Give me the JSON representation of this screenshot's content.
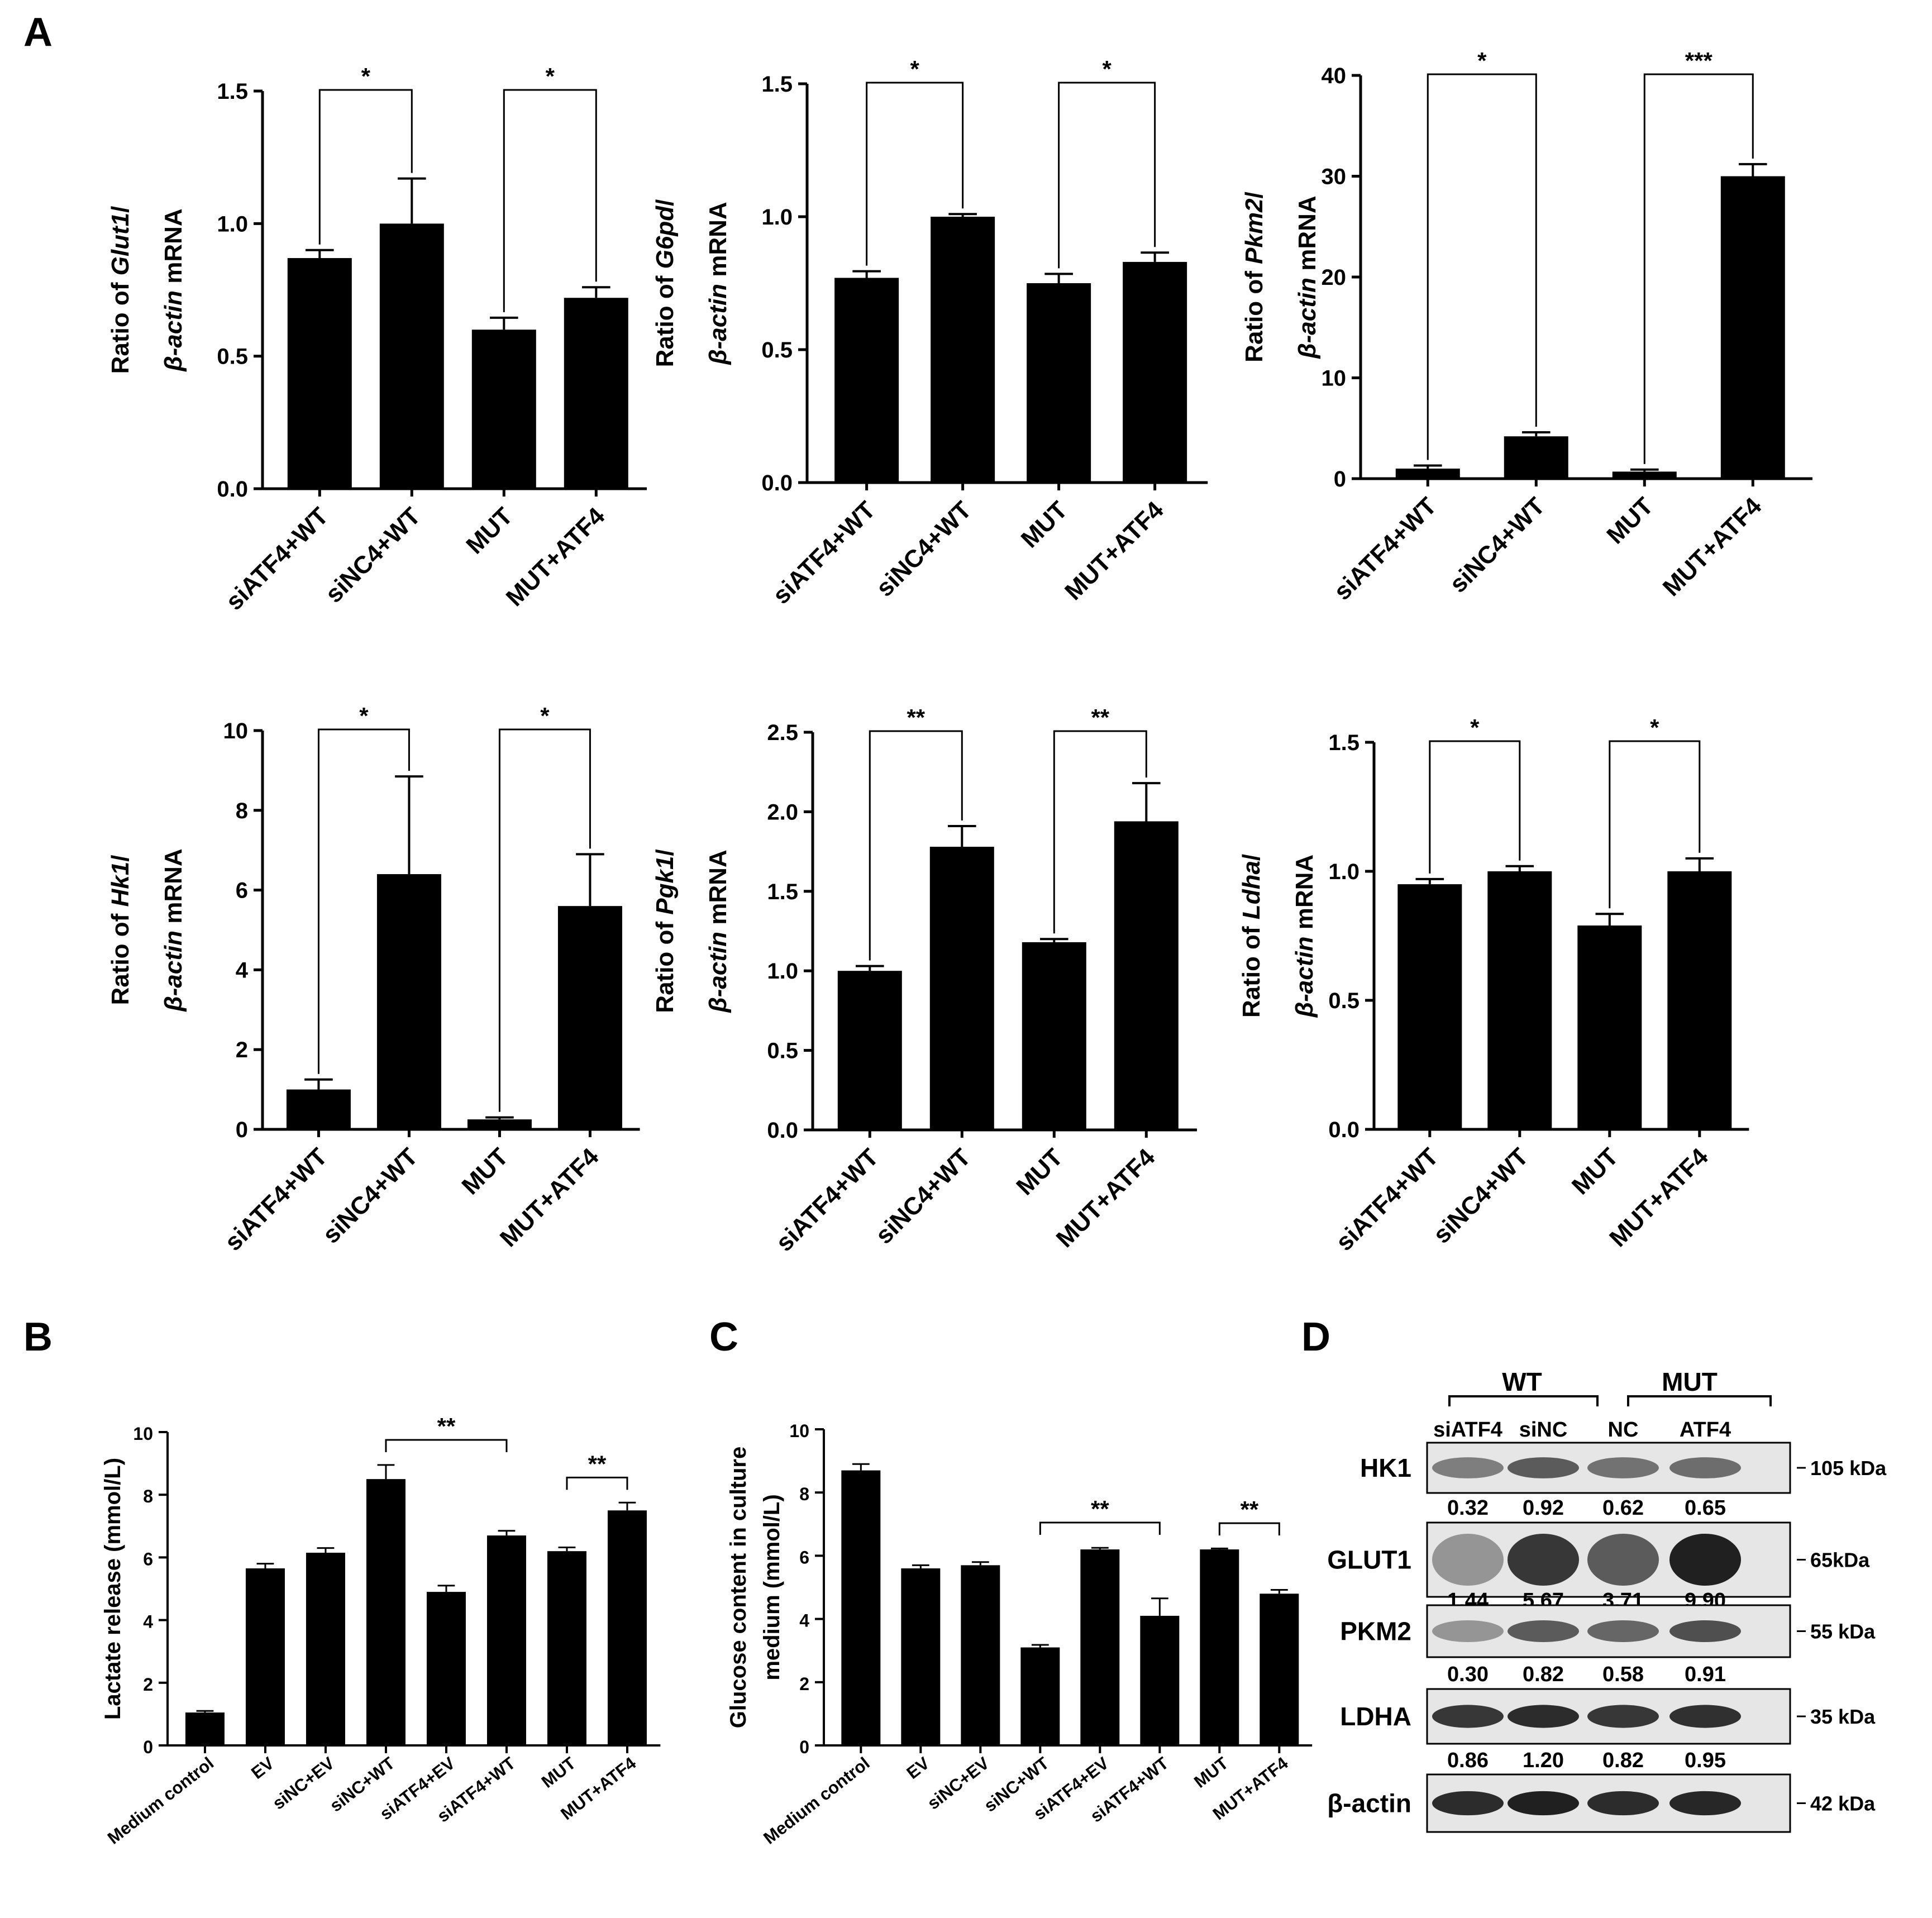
{
  "panel_labels": {
    "a": "A",
    "b": "B",
    "c": "C",
    "d": "D"
  },
  "chart_data": [
    {
      "id": "glut1",
      "type": "bar",
      "categories": [
        "siATF4+WT",
        "siNC4+WT",
        "MUT",
        "MUT+ATF4"
      ],
      "values": [
        0.87,
        1.0,
        0.6,
        0.72
      ],
      "errors": [
        0.03,
        0.17,
        0.045,
        0.04
      ],
      "ylim": [
        0,
        1.5
      ],
      "yticks": [
        "0.0",
        "0.5",
        "1.0",
        "1.5"
      ],
      "ylabel_line1_pre": "Ratio of ",
      "ylabel_line1_gene": "Glut1",
      "ylabel_line1_post": "/",
      "ylabel_line2_italic": "β-actin",
      "ylabel_line2_post": " mRNA",
      "brackets": [
        {
          "from": 0,
          "to": 1,
          "label": "*"
        },
        {
          "from": 2,
          "to": 3,
          "label": "*"
        }
      ]
    },
    {
      "id": "g6pd",
      "type": "bar",
      "categories": [
        "siATF4+WT",
        "siNC4+WT",
        "MUT",
        "MUT+ATF4"
      ],
      "values": [
        0.77,
        1.0,
        0.75,
        0.83
      ],
      "errors": [
        0.025,
        0.01,
        0.035,
        0.035
      ],
      "ylim": [
        0,
        1.5
      ],
      "yticks": [
        "0.0",
        "0.5",
        "1.0",
        "1.5"
      ],
      "ylabel_line1_pre": "Ratio of ",
      "ylabel_line1_gene": "G6pd",
      "ylabel_line1_post": "/",
      "ylabel_line2_italic": "β-actin",
      "ylabel_line2_post": " mRNA",
      "brackets": [
        {
          "from": 0,
          "to": 1,
          "label": "*"
        },
        {
          "from": 2,
          "to": 3,
          "label": "*"
        }
      ]
    },
    {
      "id": "pkm2",
      "type": "bar",
      "categories": [
        "siATF4+WT",
        "siNC4+WT",
        "MUT",
        "MUT+ATF4"
      ],
      "values": [
        1.0,
        4.2,
        0.7,
        30.0
      ],
      "errors": [
        0.3,
        0.4,
        0.2,
        1.2
      ],
      "ylim": [
        0,
        40
      ],
      "yticks": [
        "0",
        "10",
        "20",
        "30",
        "40"
      ],
      "ylabel_line1_pre": "Ratio of ",
      "ylabel_line1_gene": "Pkm2",
      "ylabel_line1_post": "/",
      "ylabel_line2_italic": "β-actin",
      "ylabel_line2_post": " mRNA",
      "brackets": [
        {
          "from": 0,
          "to": 1,
          "label": "*"
        },
        {
          "from": 2,
          "to": 3,
          "label": "***"
        }
      ]
    },
    {
      "id": "hk1",
      "type": "bar",
      "categories": [
        "siATF4+WT",
        "siNC4+WT",
        "MUT",
        "MUT+ATF4"
      ],
      "values": [
        1.0,
        6.4,
        0.25,
        5.6
      ],
      "errors": [
        0.25,
        2.45,
        0.05,
        1.3
      ],
      "ylim": [
        0,
        10
      ],
      "yticks": [
        "0",
        "2",
        "4",
        "6",
        "8",
        "10"
      ],
      "ylabel_line1_pre": "Ratio of ",
      "ylabel_line1_gene": "Hk1",
      "ylabel_line1_post": "/",
      "ylabel_line2_italic": "β-actin",
      "ylabel_line2_post": " mRNA",
      "brackets": [
        {
          "from": 0,
          "to": 1,
          "label": "*"
        },
        {
          "from": 2,
          "to": 3,
          "label": "*"
        }
      ]
    },
    {
      "id": "pgk1",
      "type": "bar",
      "categories": [
        "siATF4+WT",
        "siNC4+WT",
        "MUT",
        "MUT+ATF4"
      ],
      "values": [
        1.0,
        1.78,
        1.18,
        1.94
      ],
      "errors": [
        0.03,
        0.13,
        0.02,
        0.24
      ],
      "ylim": [
        0,
        2.5
      ],
      "yticks": [
        "0.0",
        "0.5",
        "1.0",
        "1.5",
        "2.0",
        "2.5"
      ],
      "ylabel_line1_pre": "Ratio of ",
      "ylabel_line1_gene": "Pgk1",
      "ylabel_line1_post": "/",
      "ylabel_line2_italic": "β-actin",
      "ylabel_line2_post": " mRNA",
      "brackets": [
        {
          "from": 0,
          "to": 1,
          "label": "**"
        },
        {
          "from": 2,
          "to": 3,
          "label": "**"
        }
      ]
    },
    {
      "id": "ldha",
      "type": "bar",
      "categories": [
        "siATF4+WT",
        "siNC4+WT",
        "MUT",
        "MUT+ATF4"
      ],
      "values": [
        0.95,
        1.0,
        0.79,
        1.0
      ],
      "errors": [
        0.02,
        0.02,
        0.045,
        0.05
      ],
      "ylim": [
        0,
        1.5
      ],
      "yticks": [
        "0.0",
        "0.5",
        "1.0",
        "1.5"
      ],
      "ylabel_line1_pre": "Ratio of ",
      "ylabel_line1_gene": "Ldha",
      "ylabel_line1_post": "/",
      "ylabel_line2_italic": "β-actin",
      "ylabel_line2_post": " mRNA",
      "brackets": [
        {
          "from": 0,
          "to": 1,
          "label": "*"
        },
        {
          "from": 2,
          "to": 3,
          "label": "*"
        }
      ]
    },
    {
      "id": "lactate",
      "type": "bar",
      "categories": [
        "Medium control",
        "EV",
        "siNC+EV",
        "siNC+WT",
        "siATF4+EV",
        "siATF4+WT",
        "MUT",
        "MUT+ATF4"
      ],
      "values": [
        1.05,
        5.65,
        6.15,
        8.5,
        4.9,
        6.7,
        6.2,
        7.5
      ],
      "errors": [
        0.05,
        0.15,
        0.15,
        0.45,
        0.2,
        0.15,
        0.12,
        0.25
      ],
      "ylim": [
        0,
        10
      ],
      "yticks": [
        "0",
        "2",
        "4",
        "6",
        "8",
        "10"
      ],
      "ylabel": "Lactate release (mmol/L)",
      "brackets": [
        {
          "from": 3,
          "to": 5,
          "label": "**"
        },
        {
          "from": 6,
          "to": 7,
          "label": "**"
        }
      ]
    },
    {
      "id": "glucose",
      "type": "bar",
      "categories": [
        "Medium control",
        "EV",
        "siNC+EV",
        "siNC+WT",
        "siATF4+EV",
        "siATF4+WT",
        "MUT",
        "MUT+ATF4"
      ],
      "values": [
        8.7,
        5.6,
        5.7,
        3.1,
        6.2,
        4.1,
        6.2,
        4.8
      ],
      "errors": [
        0.2,
        0.1,
        0.1,
        0.08,
        0.05,
        0.55,
        0.03,
        0.12
      ],
      "ylim": [
        0,
        10
      ],
      "yticks": [
        "0",
        "2",
        "4",
        "6",
        "8",
        "10"
      ],
      "ylabel_line1": "Glucose content in culture",
      "ylabel_line2": "medium (mmol/L)",
      "brackets": [
        {
          "from": 3,
          "to": 5,
          "label": "**"
        },
        {
          "from": 6,
          "to": 7,
          "label": "**"
        }
      ]
    }
  ],
  "western_blot": {
    "groups": [
      "WT",
      "MUT"
    ],
    "lanes": [
      "siATF4",
      "siNC",
      "NC",
      "ATF4"
    ],
    "rows": [
      {
        "protein": "HK1",
        "size": "105 kDa",
        "quant": [
          "0.32",
          "0.92",
          "0.62",
          "0.65"
        ],
        "intensity": [
          0.55,
          0.7,
          0.6,
          0.62
        ]
      },
      {
        "protein": "GLUT1",
        "size": "65kDa",
        "quant": [
          "1.44",
          "5.67",
          "3.71",
          "9.90"
        ],
        "intensity": [
          0.45,
          0.85,
          0.7,
          0.95
        ]
      },
      {
        "protein": "PKM2",
        "size": "55 kDa",
        "quant": [
          "0.30",
          "0.82",
          "0.58",
          "0.91"
        ],
        "intensity": [
          0.45,
          0.7,
          0.65,
          0.75
        ]
      },
      {
        "protein": "LDHA",
        "size": "35 kDa",
        "quant": [
          "0.86",
          "1.20",
          "0.82",
          "0.95"
        ],
        "intensity": [
          0.85,
          0.9,
          0.85,
          0.88
        ]
      },
      {
        "protein": "β-actin",
        "size": "42 kDa",
        "quant": [],
        "intensity": [
          0.9,
          0.95,
          0.9,
          0.92
        ]
      }
    ]
  }
}
